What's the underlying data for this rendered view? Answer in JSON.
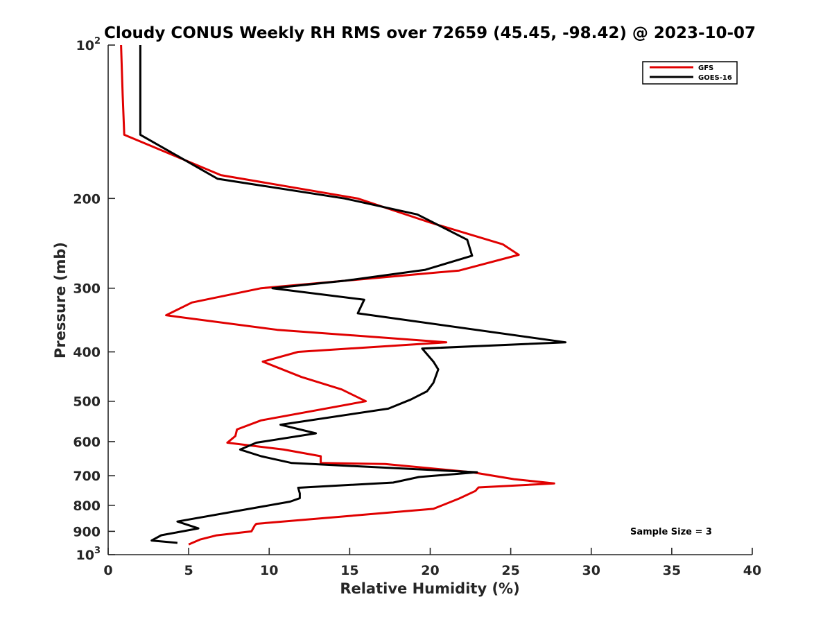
{
  "chart_data": {
    "type": "line",
    "title": "Cloudy CONUS Weekly RH RMS over 72659 (45.45, -98.42) @ 2023-10-07",
    "xlabel": "Relative Humidity (%)",
    "ylabel": "Pressure (mb)",
    "xlim": [
      0,
      40
    ],
    "ylim": [
      100,
      1000
    ],
    "yscale": "log",
    "y_reversed": true,
    "grid": false,
    "legend_position": "top-right",
    "x_ticks": [
      "0",
      "5",
      "10",
      "15",
      "20",
      "25",
      "30",
      "35",
      "40"
    ],
    "y_ticks": [
      {
        "value": 100,
        "label": "10",
        "sup": "2"
      },
      {
        "value": 200,
        "label": "200"
      },
      {
        "value": 300,
        "label": "300"
      },
      {
        "value": 400,
        "label": "400"
      },
      {
        "value": 500,
        "label": "500"
      },
      {
        "value": 600,
        "label": "600"
      },
      {
        "value": 700,
        "label": "700"
      },
      {
        "value": 800,
        "label": "800"
      },
      {
        "value": 900,
        "label": "900"
      },
      {
        "value": 1000,
        "label": "10",
        "sup": "3"
      }
    ],
    "annotation": "Sample Size = 3",
    "series": [
      {
        "name": "GFS",
        "color": "#e00000",
        "points": [
          [
            0.8,
            100
          ],
          [
            0.9,
            125
          ],
          [
            1.0,
            150
          ],
          [
            7.0,
            180
          ],
          [
            15.5,
            200
          ],
          [
            20.0,
            223
          ],
          [
            24.5,
            246
          ],
          [
            25.5,
            258
          ],
          [
            21.8,
            277
          ],
          [
            9.5,
            300
          ],
          [
            5.2,
            320
          ],
          [
            3.6,
            339
          ],
          [
            10.5,
            362
          ],
          [
            21.0,
            383
          ],
          [
            11.8,
            400
          ],
          [
            9.6,
            418
          ],
          [
            12.0,
            448
          ],
          [
            14.5,
            474
          ],
          [
            16.0,
            500
          ],
          [
            9.5,
            545
          ],
          [
            8.0,
            568
          ],
          [
            7.9,
            585
          ],
          [
            7.4,
            603
          ],
          [
            10.9,
            622
          ],
          [
            13.2,
            641
          ],
          [
            13.2,
            661
          ],
          [
            17.2,
            664
          ],
          [
            22.6,
            689
          ],
          [
            25.2,
            711
          ],
          [
            27.7,
            725
          ],
          [
            23.0,
            738
          ],
          [
            22.8,
            750
          ],
          [
            21.8,
            776
          ],
          [
            20.2,
            813
          ],
          [
            9.2,
            870
          ],
          [
            9.1,
            877
          ],
          [
            8.9,
            900
          ],
          [
            6.7,
            917
          ],
          [
            5.7,
            934
          ],
          [
            5.0,
            955
          ]
        ]
      },
      {
        "name": "GOES-16",
        "color": "#000000",
        "points": [
          [
            2.0,
            100
          ],
          [
            2.0,
            125
          ],
          [
            2.0,
            150
          ],
          [
            6.8,
            183
          ],
          [
            14.7,
            200
          ],
          [
            19.2,
            215
          ],
          [
            22.3,
            241
          ],
          [
            22.6,
            259
          ],
          [
            19.7,
            276
          ],
          [
            14.7,
            290
          ],
          [
            10.2,
            300
          ],
          [
            15.9,
            316
          ],
          [
            15.5,
            336
          ],
          [
            28.4,
            383
          ],
          [
            19.5,
            394
          ],
          [
            20.2,
            418
          ],
          [
            20.5,
            433
          ],
          [
            20.2,
            460
          ],
          [
            19.8,
            478
          ],
          [
            18.8,
            496
          ],
          [
            17.4,
            517
          ],
          [
            10.7,
            556
          ],
          [
            12.9,
            578
          ],
          [
            9.2,
            603
          ],
          [
            8.2,
            622
          ],
          [
            9.5,
            641
          ],
          [
            11.4,
            661
          ],
          [
            22.9,
            689
          ],
          [
            19.3,
            704
          ],
          [
            17.7,
            722
          ],
          [
            11.8,
            739
          ],
          [
            11.9,
            758
          ],
          [
            11.9,
            775
          ],
          [
            11.3,
            787
          ],
          [
            4.3,
            861
          ],
          [
            5.6,
            888
          ],
          [
            3.3,
            916
          ],
          [
            2.7,
            938
          ],
          [
            4.3,
            948
          ]
        ]
      }
    ]
  }
}
